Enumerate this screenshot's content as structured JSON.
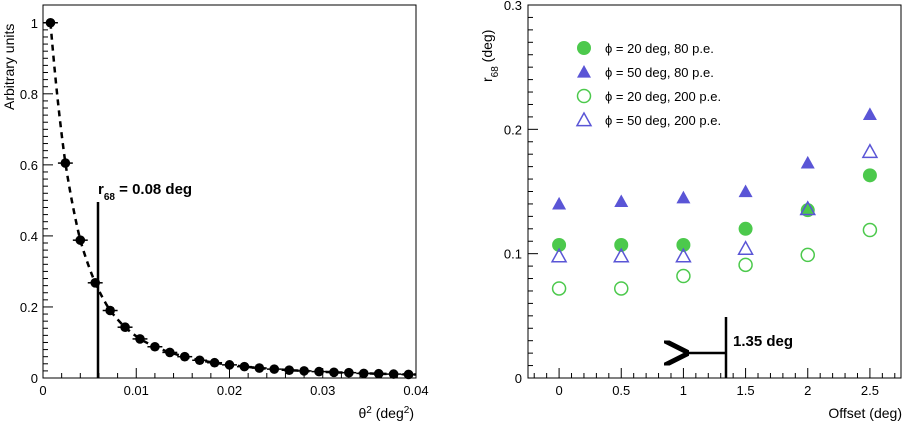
{
  "chart_data": [
    {
      "type": "scatter",
      "xlabel": "θ² (deg²)",
      "ylabel": "Arbitrary units",
      "xlim": [
        0,
        0.04
      ],
      "ylim": [
        0,
        1.05
      ],
      "x_ticks": [
        "0",
        "0.01",
        "0.02",
        "0.03",
        "0.04"
      ],
      "y_ticks": [
        "0",
        "0.2",
        "0.4",
        "0.6",
        "0.8",
        "1"
      ],
      "annotation": "r68 = 0.08 deg",
      "marker_x": 0.0064,
      "series": [
        {
          "x": [
            0.0008,
            0.0024,
            0.004,
            0.0056,
            0.0072,
            0.0088,
            0.0104,
            0.012,
            0.0136,
            0.0152,
            0.0168,
            0.0184,
            0.02,
            0.0216,
            0.0232,
            0.0248,
            0.0264,
            0.028,
            0.0296,
            0.0312,
            0.0328,
            0.0344,
            0.036,
            0.0376,
            0.0392
          ],
          "values": [
            1.0,
            0.605,
            0.388,
            0.268,
            0.19,
            0.143,
            0.11,
            0.088,
            0.072,
            0.06,
            0.05,
            0.043,
            0.037,
            0.032,
            0.028,
            0.025,
            0.022,
            0.02,
            0.018,
            0.016,
            0.015,
            0.013,
            0.012,
            0.011,
            0.01
          ]
        }
      ]
    },
    {
      "type": "scatter",
      "xlabel": "Offset (deg)",
      "ylabel": "r68 (deg)",
      "xlim": [
        -0.25,
        2.75
      ],
      "ylim": [
        0,
        0.3
      ],
      "x_ticks": [
        "0",
        "0.5",
        "1",
        "1.5",
        "2",
        "2.5"
      ],
      "y_ticks": [
        "0",
        "0.1",
        "0.2",
        "0.3"
      ],
      "annotation": "1.35 deg",
      "marker_x": 1.35,
      "legend_position": "top-left",
      "series": [
        {
          "name": "ϕ = 20 deg, 80 p.e.",
          "marker": "filled-circle",
          "color": "#4cc94c",
          "x": [
            0,
            0.5,
            1,
            1.5,
            2,
            2.5
          ],
          "values": [
            0.107,
            0.107,
            0.107,
            0.12,
            0.135,
            0.163
          ]
        },
        {
          "name": "ϕ = 50 deg, 80 p.e.",
          "marker": "filled-triangle",
          "color": "#5a55d6",
          "x": [
            0,
            0.5,
            1,
            1.5,
            2,
            2.5
          ],
          "values": [
            0.14,
            0.142,
            0.145,
            0.15,
            0.173,
            0.212
          ]
        },
        {
          "name": "ϕ = 20 deg, 200 p.e.",
          "marker": "open-circle",
          "color": "#4cc94c",
          "x": [
            0,
            0.5,
            1,
            1.5,
            2,
            2.5
          ],
          "values": [
            0.072,
            0.072,
            0.082,
            0.091,
            0.099,
            0.119
          ]
        },
        {
          "name": "ϕ = 50 deg, 200 p.e.",
          "marker": "open-triangle",
          "color": "#5a55d6",
          "x": [
            0,
            0.5,
            1,
            1.5,
            2,
            2.5
          ],
          "values": [
            0.098,
            0.098,
            0.098,
            0.104,
            0.136,
            0.182
          ]
        }
      ]
    }
  ]
}
